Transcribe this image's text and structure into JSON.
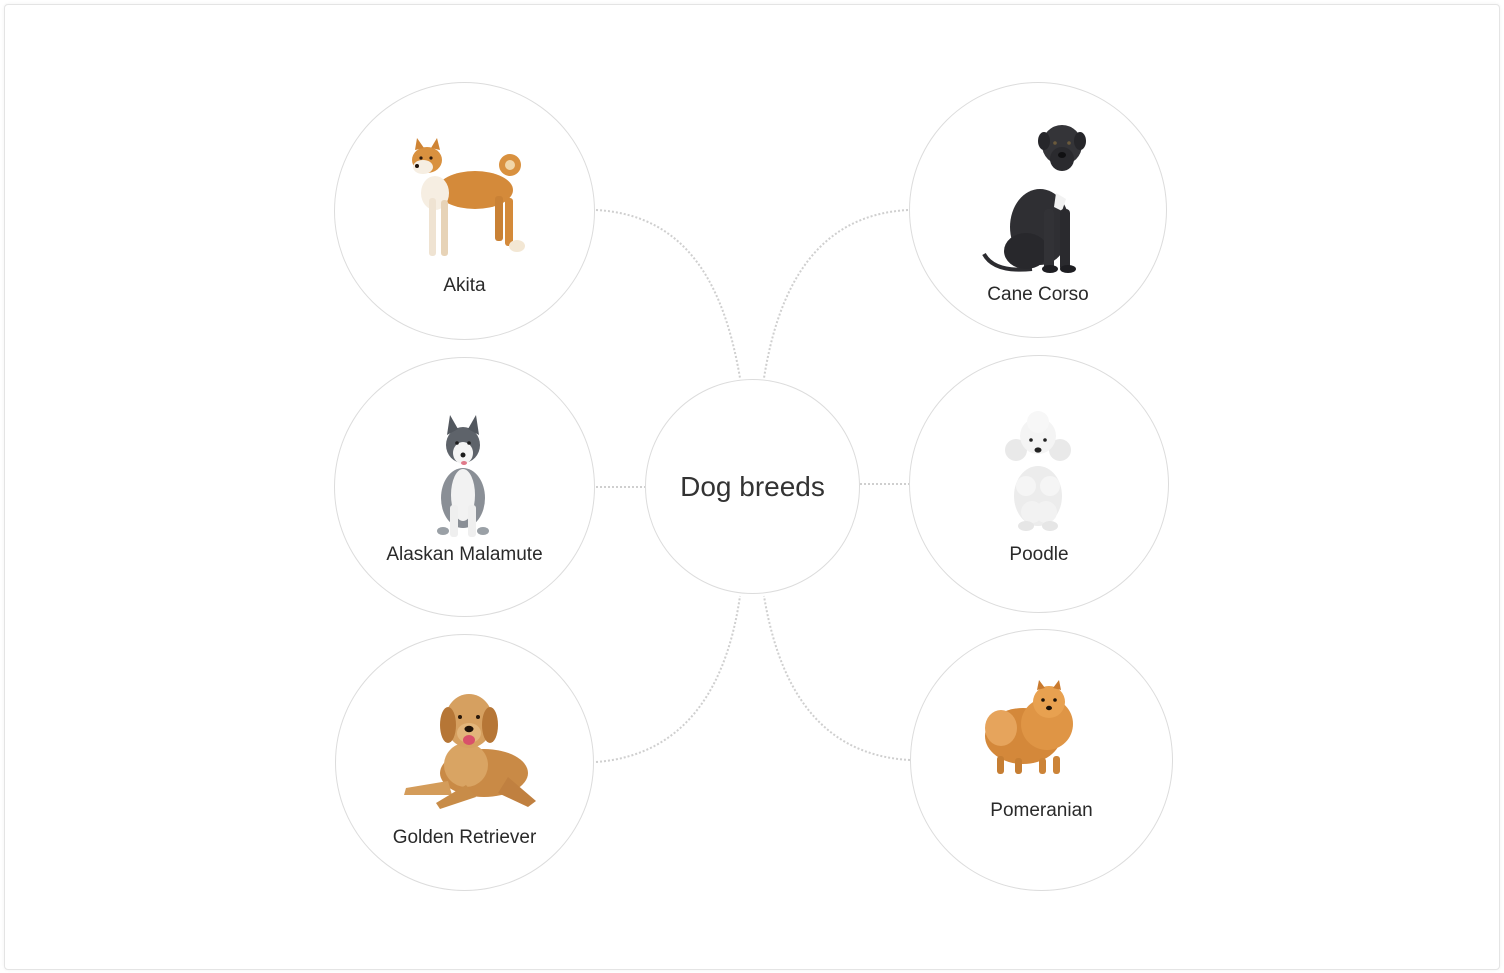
{
  "diagram": {
    "center": {
      "label": "Dog breeds"
    },
    "nodes": [
      {
        "label": "Akita",
        "icon": "akita-dog-icon"
      },
      {
        "label": "Alaskan Malamute",
        "icon": "alaskan-malamute-dog-icon"
      },
      {
        "label": "Golden Retriever",
        "icon": "golden-retriever-dog-icon"
      },
      {
        "label": "Cane Corso",
        "icon": "cane-corso-dog-icon"
      },
      {
        "label": "Poodle",
        "icon": "poodle-dog-icon"
      },
      {
        "label": "Pomeranian",
        "icon": "pomeranian-dog-icon"
      }
    ]
  },
  "colors": {
    "node_border": "#dcdcdc",
    "connector": "#cfcfcf",
    "label_text": "#2a2a2a"
  }
}
